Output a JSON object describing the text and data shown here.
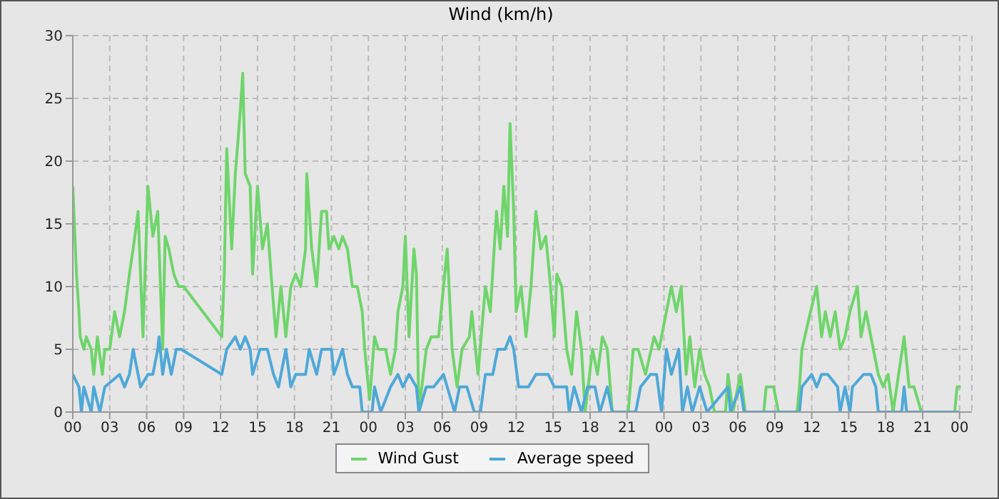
{
  "chart_data": {
    "type": "line",
    "title": "Wind (km/h)",
    "xlim": [
      0,
      73
    ],
    "xticks": [
      {
        "value": 0,
        "label": "00"
      },
      {
        "value": 3,
        "label": "03"
      },
      {
        "value": 6,
        "label": "06"
      },
      {
        "value": 9,
        "label": "09"
      },
      {
        "value": 12,
        "label": "12"
      },
      {
        "value": 15,
        "label": "15"
      },
      {
        "value": 18,
        "label": "18"
      },
      {
        "value": 21,
        "label": "21"
      },
      {
        "value": 24,
        "label": "00"
      },
      {
        "value": 27,
        "label": "03"
      },
      {
        "value": 30,
        "label": "06"
      },
      {
        "value": 33,
        "label": "09"
      },
      {
        "value": 36,
        "label": "12"
      },
      {
        "value": 39,
        "label": "15"
      },
      {
        "value": 42,
        "label": "18"
      },
      {
        "value": 45,
        "label": "21"
      },
      {
        "value": 48,
        "label": "00"
      },
      {
        "value": 51,
        "label": "03"
      },
      {
        "value": 54,
        "label": "06"
      },
      {
        "value": 57,
        "label": "09"
      },
      {
        "value": 60,
        "label": "12"
      },
      {
        "value": 63,
        "label": "15"
      },
      {
        "value": 66,
        "label": "18"
      },
      {
        "value": 69,
        "label": "21"
      },
      {
        "value": 72,
        "label": "00"
      }
    ],
    "ylim": [
      0,
      30
    ],
    "yticks": [
      0,
      5,
      10,
      15,
      20,
      25,
      30
    ],
    "grid": true,
    "legend": "bottom",
    "marker": "none",
    "line_style": "solid",
    "series": [
      {
        "name": "Wind Gust",
        "color": "#6fd56b",
        "x": [
          0,
          0.3,
          0.5,
          0.6,
          0.9,
          1.1,
          1.5,
          1.7,
          2,
          2.4,
          2.6,
          3,
          3.4,
          3.8,
          4.2,
          4.6,
          4.9,
          5.3,
          5.7,
          6.1,
          6.5,
          6.9,
          7.3,
          7.5,
          7.8,
          8.2,
          8.6,
          9,
          12.1,
          12.3,
          12.5,
          12.9,
          13.2,
          13.6,
          13.8,
          14,
          14.4,
          14.6,
          15,
          15.4,
          15.8,
          16.1,
          16.5,
          16.9,
          17.3,
          17.7,
          18.1,
          18.5,
          18.9,
          19,
          19.4,
          19.8,
          20.2,
          20.6,
          20.8,
          21.2,
          21.6,
          21.9,
          22.3,
          22.7,
          23.1,
          23.5,
          23.7,
          24.1,
          24.5,
          24.8,
          25.4,
          25.8,
          26.2,
          26.4,
          26.8,
          27,
          27.3,
          27.7,
          27.9,
          28.1,
          28.7,
          29.1,
          29.7,
          30.1,
          30.4,
          30.8,
          31.2,
          31.6,
          32.2,
          32.4,
          32.9,
          33.5,
          33.9,
          34.4,
          34.7,
          35,
          35.3,
          35.5,
          35.8,
          36,
          36.4,
          36.8,
          37.2,
          37.6,
          38,
          38.4,
          38.7,
          39.1,
          39.3,
          39.7,
          40.1,
          40.5,
          40.9,
          41.3,
          41.6,
          42.2,
          42.6,
          43,
          43.4,
          43.8,
          45.1,
          45.5,
          45.9,
          46.5,
          47.2,
          47.6,
          48.2,
          48.6,
          49,
          49.4,
          49.8,
          50.1,
          50.5,
          50.9,
          51.3,
          51.7,
          52.1,
          53,
          53.2,
          53.6,
          54.2,
          54.6,
          56.1,
          56.3,
          56.9,
          57.3,
          58.8,
          59,
          59.2,
          59.9,
          60.4,
          60.8,
          61.1,
          61.5,
          61.9,
          62.3,
          62.7,
          63.1,
          63.7,
          64,
          64.4,
          65,
          65.4,
          65.8,
          66.2,
          66.6,
          67.5,
          67.9,
          68.3,
          68.9,
          71.6,
          71.8,
          72.1
        ],
        "values": [
          18,
          11,
          8,
          6,
          5,
          6,
          5,
          3,
          6,
          3,
          5,
          5,
          8,
          6,
          8,
          11,
          13,
          16,
          6,
          18,
          14,
          16,
          5,
          14,
          13,
          11,
          10,
          10,
          6,
          11,
          21,
          13,
          19,
          24,
          27,
          19,
          18,
          11,
          18,
          13,
          15,
          11,
          6,
          10,
          6,
          10,
          11,
          10,
          13,
          19,
          13,
          10,
          16,
          16,
          13,
          14,
          13,
          14,
          13,
          10,
          10,
          8,
          5,
          1,
          6,
          5,
          5,
          3,
          5,
          8,
          10,
          14,
          6,
          13,
          11,
          0,
          5,
          6,
          6,
          10,
          13,
          5,
          2,
          5,
          6,
          8,
          3,
          10,
          8,
          16,
          13,
          18,
          14,
          23,
          16,
          8,
          10,
          6,
          10,
          16,
          13,
          14,
          11,
          6,
          11,
          10,
          5,
          3,
          8,
          5,
          0,
          5,
          3,
          6,
          5,
          0,
          0,
          5,
          5,
          3,
          6,
          5,
          8,
          10,
          8,
          10,
          3,
          6,
          2,
          5,
          3,
          2,
          0,
          0,
          3,
          0,
          3,
          0,
          0,
          2,
          2,
          0,
          0,
          2,
          5,
          8,
          10,
          6,
          8,
          6,
          8,
          5,
          6,
          8,
          10,
          6,
          8,
          5,
          3,
          2,
          3,
          0,
          6,
          2,
          2,
          0,
          0,
          2,
          2
        ]
      },
      {
        "name": "Average speed",
        "color": "#4ea8d8",
        "x": [
          0,
          0.5,
          0.7,
          0.9,
          1.5,
          1.7,
          2.2,
          2.6,
          3.8,
          4.2,
          4.6,
          4.9,
          5.3,
          5.5,
          6.1,
          6.5,
          6.9,
          7,
          7.3,
          7.6,
          8,
          8.4,
          8.8,
          12.1,
          12.5,
          13.2,
          13.6,
          14,
          14.4,
          14.6,
          15.2,
          15.8,
          16.3,
          16.7,
          17.3,
          17.7,
          18.1,
          18.9,
          19.2,
          19.8,
          20.2,
          21,
          21.2,
          21.9,
          22.3,
          22.7,
          23.3,
          23.5,
          24.3,
          24.5,
          25,
          25.8,
          26.4,
          26.8,
          27.3,
          27.9,
          28.1,
          28.7,
          29.3,
          30.1,
          30.4,
          31,
          31.4,
          32,
          32.6,
          33.1,
          33.5,
          34.1,
          34.5,
          35.1,
          35.5,
          35.8,
          36.2,
          37,
          37.6,
          38.6,
          39.1,
          40.1,
          40.3,
          40.7,
          41.3,
          41.8,
          42.4,
          42.8,
          43.4,
          43.8,
          45.7,
          46.1,
          46.9,
          47.4,
          47.8,
          48.2,
          48.6,
          49.2,
          49.5,
          49.9,
          50.3,
          50.9,
          51.5,
          53.2,
          53.4,
          54.2,
          54.5,
          59,
          59.2,
          60,
          60.4,
          60.8,
          61.3,
          62.1,
          62.3,
          62.7,
          63.1,
          63.3,
          64.2,
          64.8,
          65.2,
          65.4,
          67.3,
          67.5,
          67.7,
          72
        ],
        "values": [
          3,
          2,
          0,
          2,
          0,
          2,
          0,
          2,
          3,
          2,
          3,
          5,
          3,
          2,
          3,
          3,
          5,
          6,
          3,
          5,
          3,
          5,
          5,
          3,
          5,
          6,
          5,
          6,
          5,
          3,
          5,
          5,
          3,
          2,
          5,
          2,
          3,
          3,
          5,
          3,
          5,
          5,
          3,
          5,
          3,
          2,
          2,
          0,
          0,
          2,
          0,
          2,
          3,
          2,
          3,
          2,
          0,
          2,
          2,
          3,
          2,
          0,
          2,
          2,
          0,
          0,
          3,
          3,
          5,
          5,
          6,
          5,
          2,
          2,
          3,
          3,
          2,
          2,
          0,
          2,
          0,
          2,
          2,
          0,
          2,
          0,
          0,
          2,
          3,
          3,
          0,
          5,
          3,
          5,
          0,
          2,
          0,
          2,
          0,
          2,
          0,
          2,
          0,
          0,
          2,
          3,
          2,
          3,
          3,
          2,
          0,
          2,
          0,
          2,
          3,
          3,
          2,
          0,
          0,
          2,
          0,
          0
        ]
      }
    ]
  }
}
